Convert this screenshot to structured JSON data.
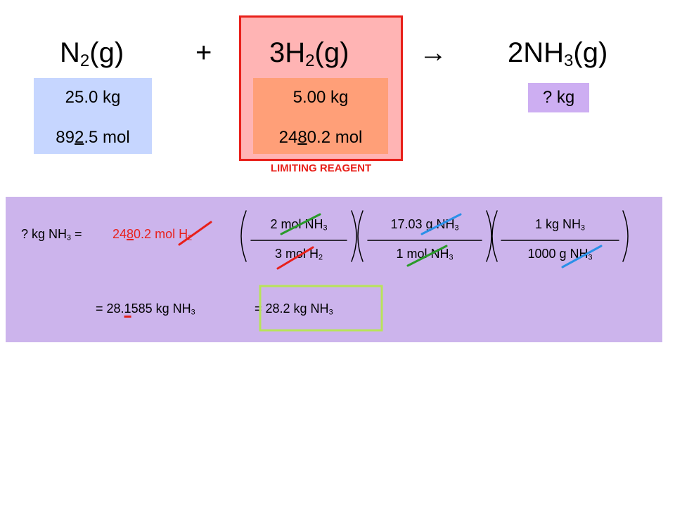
{
  "equation": {
    "reactant1": [
      "N",
      "2",
      "(g)"
    ],
    "plus": "+",
    "reactant2": [
      "3H",
      "2",
      "(g)"
    ],
    "arrow": "→",
    "product": [
      "2NH",
      "3",
      "(g)"
    ]
  },
  "boxes": {
    "n2": {
      "mass": "25.0 kg",
      "moles": [
        "89",
        "2",
        ".5 mol"
      ]
    },
    "h2": {
      "mass": "5.00 kg",
      "moles": [
        "24",
        "8",
        "0.2 mol"
      ]
    },
    "nh3": {
      "mass": "? kg"
    }
  },
  "limiting_label": "LIMITING REAGENT",
  "calculation": {
    "lhs": [
      "? kg NH",
      "3",
      " = "
    ],
    "given": [
      "24",
      "8",
      "0.2 mol H",
      "2"
    ],
    "factors": [
      {
        "num": [
          "2 mol NH",
          "3"
        ],
        "den": [
          "3 mol H",
          "2"
        ]
      },
      {
        "num": [
          "17.03 g NH",
          "3"
        ],
        "den": [
          "1 mol NH",
          "3"
        ]
      },
      {
        "num": [
          "1 kg NH",
          "3"
        ],
        "den": [
          "1000 g NH",
          "3"
        ]
      }
    ],
    "result": [
      "= 28.",
      "1",
      "585 kg NH",
      "3"
    ],
    "final": [
      "= 28.2 kg NH",
      "3"
    ]
  }
}
